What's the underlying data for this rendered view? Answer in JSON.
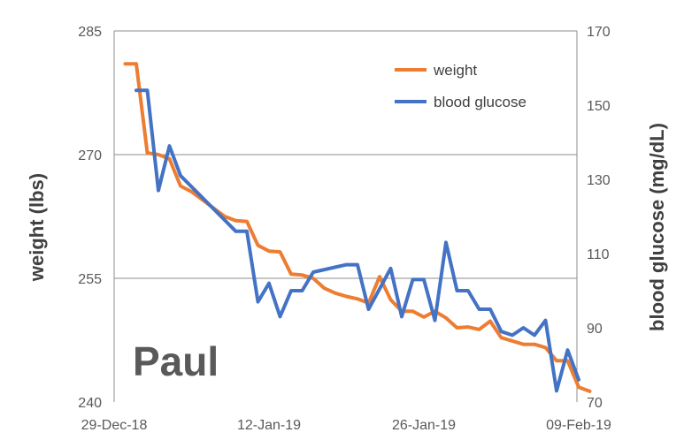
{
  "chart_data": {
    "type": "line",
    "annotation": "Paul",
    "x_axis": {
      "type": "date",
      "range": [
        "2018-12-29",
        "2019-02-10"
      ],
      "ticks": [
        {
          "date": "2018-12-29",
          "label": "29-Dec-18"
        },
        {
          "date": "2019-01-12",
          "label": "12-Jan-19"
        },
        {
          "date": "2019-01-26",
          "label": "26-Jan-19"
        },
        {
          "date": "2019-02-09",
          "label": "09-Feb-19"
        }
      ]
    },
    "y_left": {
      "label": "weight (lbs)",
      "range": [
        240,
        285
      ],
      "ticks": [
        "240",
        "255",
        "270",
        "285"
      ],
      "tick_values": [
        240,
        255,
        270,
        285
      ]
    },
    "y_right": {
      "label": "blood glucose (mg/dL)",
      "range": [
        70,
        170
      ],
      "ticks": [
        "70",
        "90",
        "110",
        "130",
        "150",
        "170"
      ],
      "tick_values": [
        70,
        90,
        110,
        130,
        150,
        170
      ]
    },
    "gridlines": "horizontal",
    "legend": "top-right",
    "series": [
      {
        "name": "weight",
        "axis": "left",
        "color": "#ED7D31",
        "points": [
          [
            "2018-12-30",
            281
          ],
          [
            "2018-12-31",
            281
          ],
          [
            "2019-01-01",
            270.2
          ],
          [
            "2019-01-02",
            270
          ],
          [
            "2019-01-03",
            269.5
          ],
          [
            "2019-01-04",
            266.2
          ],
          [
            "2019-01-05",
            265.5
          ],
          [
            "2019-01-06",
            264.5
          ],
          [
            "2019-01-07",
            263.5
          ],
          [
            "2019-01-08",
            262.5
          ],
          [
            "2019-01-09",
            262
          ],
          [
            "2019-01-10",
            261.9
          ],
          [
            "2019-01-11",
            259
          ],
          [
            "2019-01-12",
            258.3
          ],
          [
            "2019-01-13",
            258.2
          ],
          [
            "2019-01-14",
            255.5
          ],
          [
            "2019-01-15",
            255.4
          ],
          [
            "2019-01-16",
            255
          ],
          [
            "2019-01-17",
            253.8
          ],
          [
            "2019-01-18",
            253.2
          ],
          [
            "2019-01-19",
            252.8
          ],
          [
            "2019-01-20",
            252.5
          ],
          [
            "2019-01-21",
            252
          ],
          [
            "2019-01-22",
            255.2
          ],
          [
            "2019-01-23",
            252.4
          ],
          [
            "2019-01-24",
            251
          ],
          [
            "2019-01-25",
            251
          ],
          [
            "2019-01-26",
            250.3
          ],
          [
            "2019-01-27",
            251
          ],
          [
            "2019-01-28",
            250.2
          ],
          [
            "2019-01-29",
            249
          ],
          [
            "2019-01-30",
            249.1
          ],
          [
            "2019-01-31",
            248.8
          ],
          [
            "2019-02-01",
            249.8
          ],
          [
            "2019-02-02",
            247.8
          ],
          [
            "2019-02-03",
            247.4
          ],
          [
            "2019-02-04",
            247
          ],
          [
            "2019-02-05",
            247
          ],
          [
            "2019-02-06",
            246.6
          ],
          [
            "2019-02-07",
            245
          ],
          [
            "2019-02-08",
            245
          ],
          [
            "2019-02-09",
            241.8
          ],
          [
            "2019-02-10",
            241.3
          ]
        ]
      },
      {
        "name": "blood glucose",
        "axis": "right",
        "color": "#4472C4",
        "points": [
          [
            "2018-12-31",
            154
          ],
          [
            "2019-01-01",
            154
          ],
          [
            "2019-01-02",
            127
          ],
          [
            "2019-01-03",
            139
          ],
          [
            "2019-01-04",
            131
          ],
          [
            "2019-01-09",
            116
          ],
          [
            "2019-01-10",
            116
          ],
          [
            "2019-01-11",
            97
          ],
          [
            "2019-01-12",
            102
          ],
          [
            "2019-01-13",
            93
          ],
          [
            "2019-01-14",
            100
          ],
          [
            "2019-01-15",
            100
          ],
          [
            "2019-01-16",
            105
          ],
          [
            "2019-01-19",
            107
          ],
          [
            "2019-01-20",
            107
          ],
          [
            "2019-01-21",
            95
          ],
          [
            "2019-01-23",
            106
          ],
          [
            "2019-01-24",
            93
          ],
          [
            "2019-01-25",
            103
          ],
          [
            "2019-01-26",
            103
          ],
          [
            "2019-01-27",
            92
          ],
          [
            "2019-01-28",
            113
          ],
          [
            "2019-01-29",
            100
          ],
          [
            "2019-01-30",
            100
          ],
          [
            "2019-01-31",
            95
          ],
          [
            "2019-02-01",
            95
          ],
          [
            "2019-02-02",
            89
          ],
          [
            "2019-02-03",
            88
          ],
          [
            "2019-02-04",
            90
          ],
          [
            "2019-02-05",
            88
          ],
          [
            "2019-02-06",
            92
          ],
          [
            "2019-02-07",
            73
          ],
          [
            "2019-02-08",
            84
          ],
          [
            "2019-02-09",
            76
          ]
        ]
      }
    ]
  }
}
